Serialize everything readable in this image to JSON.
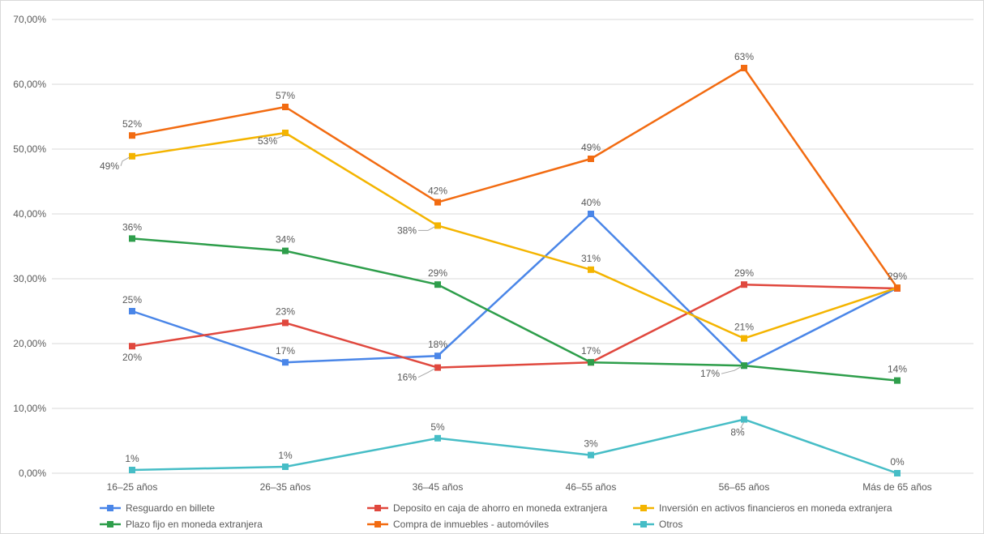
{
  "chart_data": {
    "type": "line",
    "categories": [
      "16–25 años",
      "26–35 años",
      "36–45 años",
      "46–55 años",
      "56–65 años",
      "Más de 65 años"
    ],
    "y_ticks": [
      "0,00%",
      "10,00%",
      "20,00%",
      "30,00%",
      "40,00%",
      "50,00%",
      "60,00%",
      "70,00%"
    ],
    "ylim": [
      0,
      70
    ],
    "grid": true,
    "legend_position": "bottom",
    "series": [
      {
        "name": "Resguardo en billete",
        "color": "#4a86e8",
        "values": [
          25,
          17.1,
          18.1,
          40,
          16.6,
          28.6
        ],
        "labels": [
          "25%",
          "17%",
          "18%",
          "40%",
          "",
          ""
        ]
      },
      {
        "name": "Deposito en caja de ahorro en moneda extranjera",
        "color": "#e0483e",
        "values": [
          19.6,
          23.2,
          16.3,
          17.1,
          29.1,
          28.5
        ],
        "labels": [
          "20%",
          "23%",
          "16%",
          "",
          "29%",
          ""
        ]
      },
      {
        "name": "Inversión en activos financieros en moneda extranjera",
        "color": "#f4b400",
        "values": [
          48.9,
          52.5,
          38.2,
          31.4,
          20.8,
          28.6
        ],
        "labels": [
          "49%",
          "53%",
          "38%",
          "31%",
          "21%",
          ""
        ]
      },
      {
        "name": "Plazo fijo en moneda extranjera",
        "color": "#2e9e4b",
        "values": [
          36.2,
          34.3,
          29.1,
          17.1,
          16.6,
          14.3
        ],
        "labels": [
          "36%",
          "34%",
          "29%",
          "17%",
          "17%",
          "14%"
        ]
      },
      {
        "name": "Compra de inmuebles - automóviles",
        "color": "#f26b11",
        "values": [
          52.1,
          56.5,
          41.8,
          48.5,
          62.5,
          28.6
        ],
        "labels": [
          "52%",
          "57%",
          "42%",
          "49%",
          "63%",
          "29%"
        ]
      },
      {
        "name": "Otros",
        "color": "#46bdc6",
        "values": [
          0.5,
          1.0,
          5.4,
          2.8,
          8.3,
          0
        ],
        "labels": [
          "1%",
          "1%",
          "5%",
          "3%",
          "8%",
          "0%"
        ]
      }
    ]
  }
}
